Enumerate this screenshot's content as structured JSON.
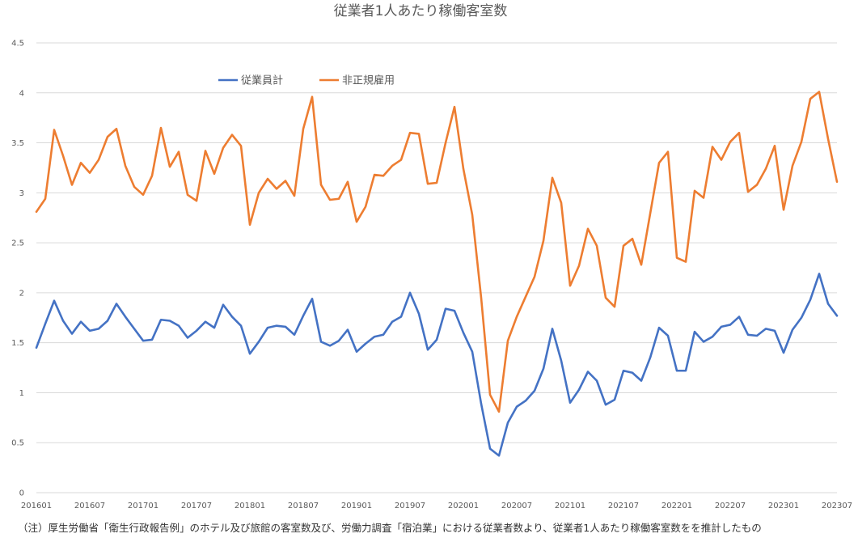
{
  "chart_data": {
    "type": "line",
    "title": "従業者1人あたり稼働客室数",
    "ylim": [
      0,
      4.5
    ],
    "yticks": [
      0,
      0.5,
      1,
      1.5,
      2,
      2.5,
      3,
      3.5,
      4,
      4.5
    ],
    "ytick_labels": [
      "0",
      "0.5",
      "1",
      "1.5",
      "2",
      "2.5",
      "3",
      "3.5",
      "4",
      "4.5"
    ],
    "xtick_labels": [
      "201601",
      "201607",
      "201701",
      "201707",
      "201801",
      "201807",
      "201901",
      "201907",
      "202001",
      "202007",
      "202101",
      "202107",
      "202201",
      "202207",
      "202301",
      "202307"
    ],
    "grid": true,
    "legend_position": "top-left",
    "series": [
      {
        "name": "従業員計",
        "color": "#4472C4",
        "values": [
          1.45,
          1.69,
          1.92,
          1.72,
          1.59,
          1.71,
          1.62,
          1.64,
          1.72,
          1.89,
          1.76,
          1.64,
          1.52,
          1.53,
          1.73,
          1.72,
          1.67,
          1.55,
          1.62,
          1.71,
          1.65,
          1.88,
          1.76,
          1.67,
          1.39,
          1.51,
          1.65,
          1.67,
          1.66,
          1.58,
          1.77,
          1.94,
          1.51,
          1.47,
          1.52,
          1.63,
          1.41,
          1.49,
          1.56,
          1.58,
          1.71,
          1.76,
          2.0,
          1.79,
          1.43,
          1.53,
          1.84,
          1.82,
          1.6,
          1.41,
          0.89,
          0.44,
          0.37,
          0.7,
          0.86,
          0.92,
          1.02,
          1.24,
          1.64,
          1.32,
          0.9,
          1.03,
          1.21,
          1.12,
          0.88,
          0.93,
          1.22,
          1.2,
          1.12,
          1.35,
          1.65,
          1.57,
          1.22,
          1.22,
          1.61,
          1.51,
          1.56,
          1.66,
          1.68,
          1.76,
          1.58,
          1.57,
          1.64,
          1.62,
          1.4,
          1.63,
          1.75,
          1.93,
          2.19,
          1.89,
          1.77
        ]
      },
      {
        "name": "非正規雇用",
        "color": "#ED7D31",
        "values": [
          2.81,
          2.94,
          3.63,
          3.37,
          3.08,
          3.3,
          3.2,
          3.33,
          3.56,
          3.64,
          3.27,
          3.06,
          2.98,
          3.17,
          3.65,
          3.26,
          3.41,
          2.98,
          2.92,
          3.42,
          3.19,
          3.45,
          3.58,
          3.47,
          2.68,
          3.0,
          3.14,
          3.04,
          3.12,
          2.97,
          3.64,
          3.96,
          3.08,
          2.93,
          2.94,
          3.11,
          2.71,
          2.86,
          3.18,
          3.17,
          3.27,
          3.33,
          3.6,
          3.59,
          3.09,
          3.1,
          3.5,
          3.86,
          3.24,
          2.78,
          1.95,
          0.98,
          0.81,
          1.52,
          1.76,
          1.96,
          2.16,
          2.52,
          3.15,
          2.9,
          2.07,
          2.27,
          2.64,
          2.47,
          1.95,
          1.86,
          2.47,
          2.54,
          2.28,
          2.79,
          3.3,
          3.41,
          2.35,
          2.31,
          3.02,
          2.95,
          3.46,
          3.33,
          3.51,
          3.6,
          3.01,
          3.08,
          3.24,
          3.47,
          2.83,
          3.27,
          3.51,
          3.94,
          4.01,
          3.54,
          3.11
        ]
      }
    ]
  },
  "note": "（注）厚生労働省「衛生行政報告例」のホテル及び旅館の客室数及び、労働力調査「宿泊業」における従業者数より、従業者1人あたり稼働客室数をを推計したもの"
}
